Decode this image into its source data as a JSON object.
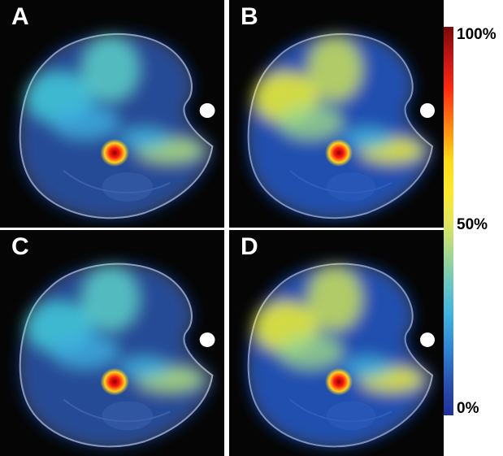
{
  "panels": [
    {
      "label": "A",
      "variant": "dim"
    },
    {
      "label": "B",
      "variant": "bright"
    },
    {
      "label": "C",
      "variant": "dim"
    },
    {
      "label": "D",
      "variant": "bright"
    }
  ],
  "colorbar": {
    "labels": {
      "top": "100%",
      "middle": "50%",
      "bottom": "0%"
    },
    "colors": [
      "#7a0a0a",
      "#ff2a10",
      "#ffd814",
      "#a6d88c",
      "#3fb3e0",
      "#20309a"
    ]
  }
}
